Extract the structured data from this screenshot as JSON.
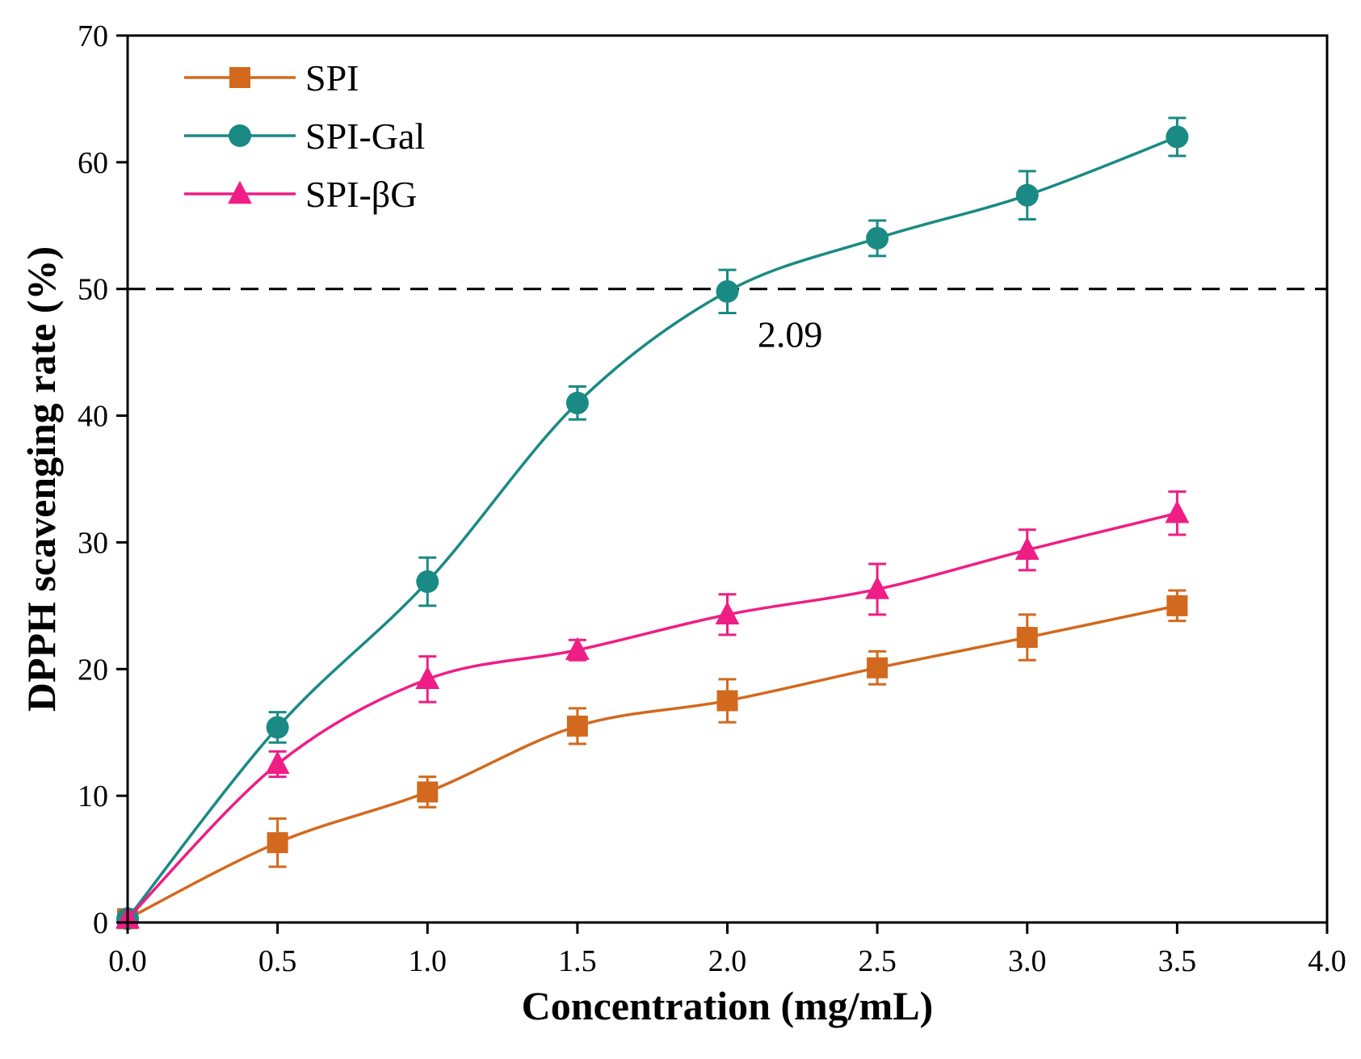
{
  "chart_data": {
    "type": "line",
    "xlabel": "Concentration (mg/mL)",
    "ylabel": "DPPH scavenging rate (%)",
    "xlim": [
      0.0,
      4.0
    ],
    "ylim": [
      0,
      70
    ],
    "xticks": [
      "0.0",
      "0.5",
      "1.0",
      "1.5",
      "2.0",
      "2.5",
      "3.0",
      "3.5",
      "4.0"
    ],
    "yticks": [
      "0",
      "10",
      "20",
      "30",
      "40",
      "50",
      "60",
      "70"
    ],
    "legend_position": "top-left",
    "reference_line": {
      "y": 50,
      "style": "dashed"
    },
    "annotation": {
      "text": "2.09",
      "x": 2.09,
      "y": 50
    },
    "series": [
      {
        "name": "SPI",
        "marker": "square",
        "color": "#d2691e",
        "x": [
          0,
          0.5,
          1.0,
          1.5,
          2.0,
          2.5,
          3.0,
          3.5
        ],
        "values": [
          0.3,
          6.3,
          10.3,
          15.5,
          17.5,
          20.1,
          22.5,
          25.0
        ],
        "errors": [
          0.2,
          1.9,
          1.2,
          1.4,
          1.7,
          1.3,
          1.8,
          1.2
        ]
      },
      {
        "name": "SPI-Gal",
        "marker": "circle",
        "color": "#1a8a84",
        "x": [
          0,
          0.5,
          1.0,
          1.5,
          2.0,
          2.5,
          3.0,
          3.5
        ],
        "values": [
          0.3,
          15.4,
          26.9,
          41.0,
          49.8,
          54.0,
          57.4,
          62.0
        ],
        "errors": [
          0.2,
          1.2,
          1.9,
          1.3,
          1.7,
          1.4,
          1.9,
          1.5
        ]
      },
      {
        "name": "SPI-βG",
        "marker": "triangle",
        "color": "#ee1e86",
        "x": [
          0,
          0.5,
          1.0,
          1.5,
          2.0,
          2.5,
          3.0,
          3.5
        ],
        "values": [
          0.3,
          12.5,
          19.2,
          21.5,
          24.3,
          26.3,
          29.4,
          32.3
        ],
        "errors": [
          0.2,
          1.0,
          1.8,
          0.8,
          1.6,
          2.0,
          1.6,
          1.7
        ]
      }
    ]
  }
}
